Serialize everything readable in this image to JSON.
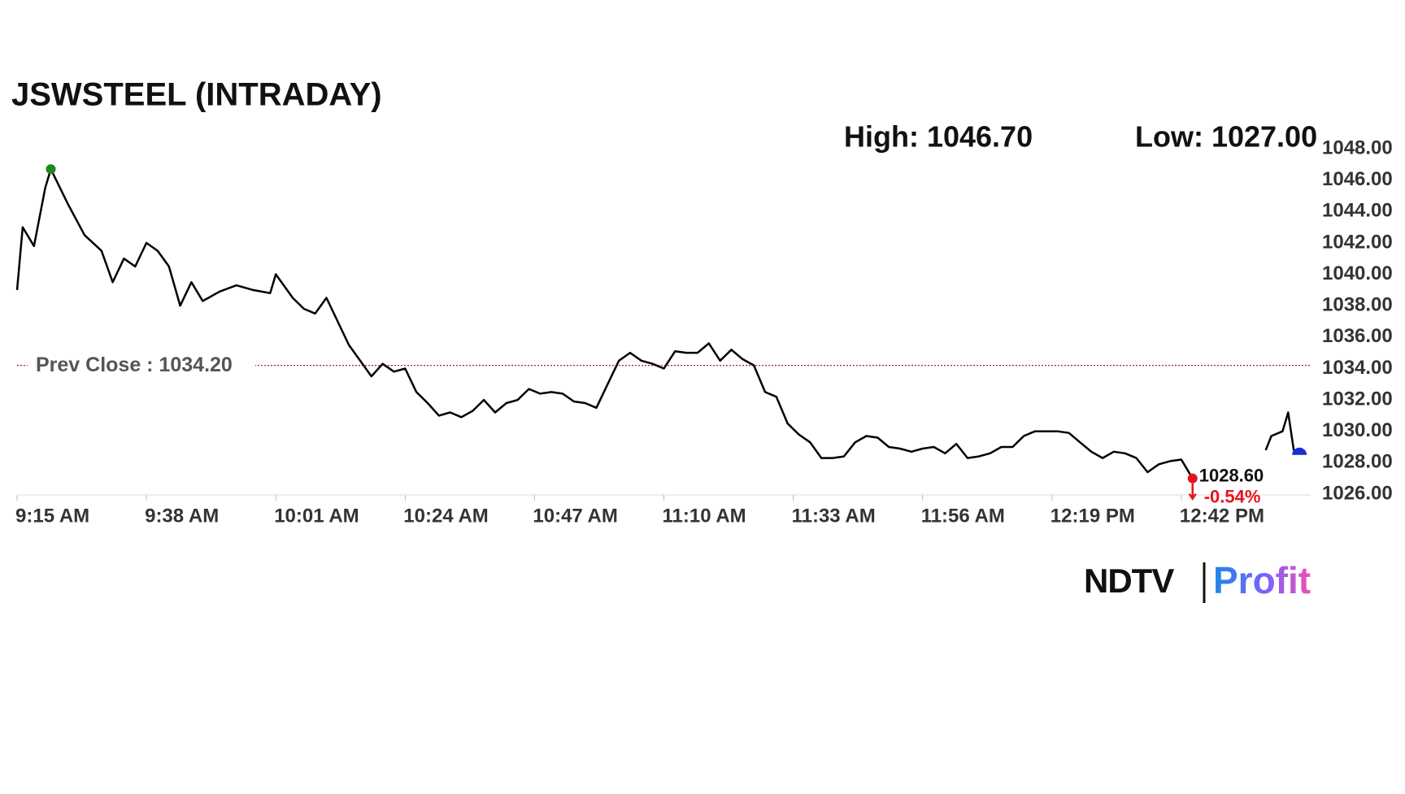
{
  "chart_data": {
    "type": "line",
    "title": "JSWSTEEL (INTRADAY)",
    "high_label": "High: 1046.70",
    "low_label": "Low: 1027.00",
    "prev_close": 1034.2,
    "prev_close_label": "Prev Close : 1034.20",
    "last_label": "1028.60",
    "change_label": "-0.54%",
    "brand": {
      "left": "NDTV",
      "right": "Profit"
    },
    "x": [
      "9:15 AM",
      "9:16 AM",
      "9:18 AM",
      "9:20 AM",
      "9:21 AM",
      "9:24 AM",
      "9:27 AM",
      "9:30 AM",
      "9:32 AM",
      "9:34 AM",
      "9:36 AM",
      "9:38 AM",
      "9:40 AM",
      "9:42 AM",
      "9:44 AM",
      "9:46 AM",
      "9:48 AM",
      "9:51 AM",
      "9:54 AM",
      "9:57 AM",
      "10:00 AM",
      "10:01 AM",
      "10:04 AM",
      "10:06 AM",
      "10:08 AM",
      "10:10 AM",
      "10:12 AM",
      "10:14 AM",
      "10:16 AM",
      "10:18 AM",
      "10:20 AM",
      "10:22 AM",
      "10:24 AM",
      "10:26 AM",
      "10:28 AM",
      "10:30 AM",
      "10:32 AM",
      "10:34 AM",
      "10:36 AM",
      "10:38 AM",
      "10:40 AM",
      "10:42 AM",
      "10:44 AM",
      "10:46 AM",
      "10:48 AM",
      "10:50 AM",
      "10:52 AM",
      "10:54 AM",
      "10:56 AM",
      "10:58 AM",
      "11:00 AM",
      "11:02 AM",
      "11:04 AM",
      "11:06 AM",
      "11:08 AM",
      "11:10 AM",
      "11:12 AM",
      "11:14 AM",
      "11:16 AM",
      "11:18 AM",
      "11:20 AM",
      "11:22 AM",
      "11:24 AM",
      "11:26 AM",
      "11:28 AM",
      "11:30 AM",
      "11:32 AM",
      "11:34 AM",
      "11:36 AM",
      "11:38 AM",
      "11:40 AM",
      "11:42 AM",
      "11:44 AM",
      "11:46 AM",
      "11:48 AM",
      "11:50 AM",
      "11:52 AM",
      "11:54 AM",
      "11:56 AM",
      "11:58 AM",
      "12:00 PM",
      "12:02 PM",
      "12:04 PM",
      "12:06 PM",
      "12:08 PM",
      "12:10 PM",
      "12:12 PM",
      "12:14 PM",
      "12:16 PM",
      "12:18 PM",
      "12:20 PM",
      "12:22 PM",
      "12:24 PM",
      "12:26 PM",
      "12:28 PM",
      "12:30 PM",
      "12:32 PM",
      "12:34 PM",
      "12:36 PM",
      "12:38 PM",
      "12:40 PM",
      "12:42 PM",
      "12:44 PM",
      "12:50 PM",
      "12:57 PM",
      "12:58 PM",
      "1:00 PM",
      "1:01 PM",
      "1:02 PM",
      "1:03 PM"
    ],
    "series": [
      {
        "name": "JSWSTEEL",
        "color": "#000000",
        "values": [
          1039,
          1043,
          1041.8,
          1045.5,
          1046.7,
          1044.5,
          1042.5,
          1041.5,
          1039.5,
          1041,
          1040.5,
          1042,
          1041.5,
          1040.5,
          1038,
          1039.5,
          1038.3,
          1038.9,
          1039.3,
          1039,
          1038.8,
          1040,
          1038.5,
          1037.8,
          1037.5,
          1038.5,
          1037,
          1035.5,
          1034.5,
          1033.5,
          1034.3,
          1033.8,
          1034,
          1032.5,
          1031.8,
          1031,
          1031.2,
          1030.9,
          1031.3,
          1032,
          1031.2,
          1031.8,
          1032,
          1032.7,
          1032.4,
          1032.5,
          1032.4,
          1031.9,
          1031.8,
          1031.5,
          1033,
          1034.5,
          1035,
          1034.5,
          1034.3,
          1034,
          1035.1,
          1035,
          1035,
          1035.6,
          1034.5,
          1035.2,
          1034.6,
          1034.2,
          1032.5,
          1032.2,
          1030.5,
          1029.8,
          1029.3,
          1028.3,
          1028.3,
          1028.4,
          1029.3,
          1029.7,
          1029.6,
          1029,
          1028.9,
          1028.7,
          1028.9,
          1029,
          1028.6,
          1029.2,
          1028.3,
          1028.4,
          1028.6,
          1029,
          1029,
          1029.7,
          1030,
          1030,
          1030,
          1029.9,
          1029.3,
          1028.7,
          1028.3,
          1028.7,
          1028.6,
          1028.3,
          1027.4,
          1027.9,
          1028.1,
          1028.2,
          1027,
          null,
          1028.8,
          1029.7,
          1030,
          1031.2,
          1028.8,
          1028.6
        ]
      }
    ],
    "xlim": [
      "9:15 AM",
      "1:05 PM"
    ],
    "xticks": [
      "9:15 AM",
      "9:38 AM",
      "10:01 AM",
      "10:24 AM",
      "10:47 AM",
      "11:10 AM",
      "11:33 AM",
      "11:56 AM",
      "12:19 PM",
      "12:42 PM"
    ],
    "ylim": [
      1026,
      1048
    ],
    "yticks": [
      {
        "value": 1026,
        "label": "1026.00"
      },
      {
        "value": 1028,
        "label": "1028.00"
      },
      {
        "value": 1030,
        "label": "1030.00"
      },
      {
        "value": 1032,
        "label": "1032.00"
      },
      {
        "value": 1034,
        "label": "1034.00"
      },
      {
        "value": 1036,
        "label": "1036.00"
      },
      {
        "value": 1038,
        "label": "1038.00"
      },
      {
        "value": 1040,
        "label": "1040.00"
      },
      {
        "value": 1042,
        "label": "1042.00"
      },
      {
        "value": 1044,
        "label": "1044.00"
      },
      {
        "value": 1046,
        "label": "1046.00"
      },
      {
        "value": 1048,
        "label": "1048.00"
      }
    ],
    "high_color": "#1a8a1a",
    "low_color": "#e8141c",
    "last_color": "#1a2bd6",
    "prev_close_color": "#b22222"
  }
}
